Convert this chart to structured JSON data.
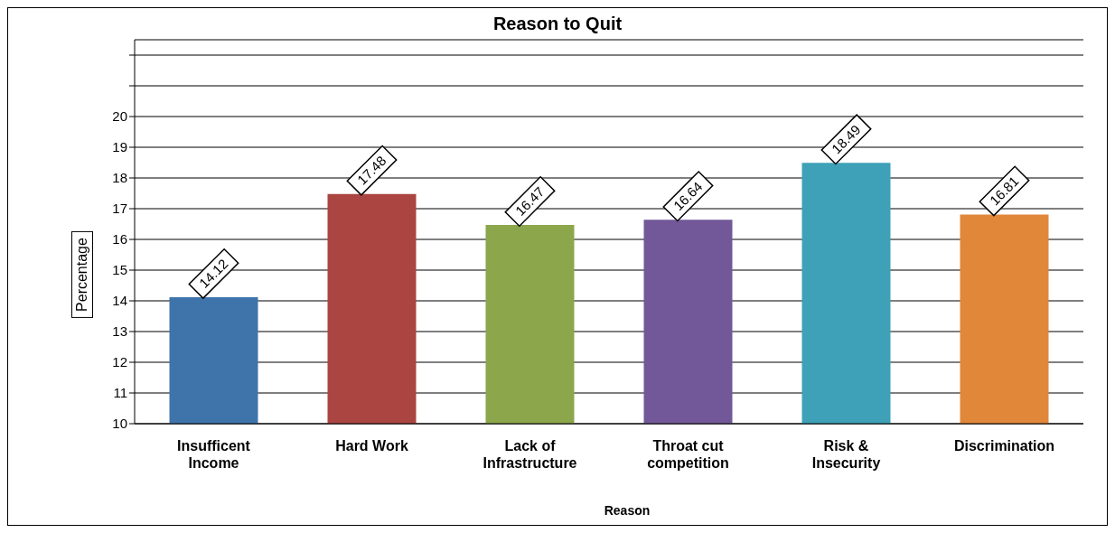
{
  "chart_data": {
    "type": "bar",
    "title": "Reason to Quit",
    "xlabel": "Reason",
    "ylabel": "Percentage",
    "categories": [
      "Insufficent Income",
      "Hard Work",
      "Lack of Infrastructure",
      "Throat cut competition",
      "Risk & Insecurity",
      "Discrimination"
    ],
    "values": [
      14.12,
      17.48,
      16.47,
      16.64,
      18.49,
      16.81
    ],
    "colors": [
      "#3f74ab",
      "#ab4541",
      "#8ba64b",
      "#725898",
      "#3ea1b8",
      "#e0873a"
    ],
    "ylim": [
      10,
      22.5
    ],
    "yticks": [
      10,
      11,
      12,
      13,
      14,
      15,
      16,
      17,
      18,
      19,
      20,
      {
        "value": 21,
        "label": null
      },
      {
        "value": 22,
        "label": null
      }
    ],
    "grid": "y",
    "data_labels": true,
    "legend": false
  }
}
